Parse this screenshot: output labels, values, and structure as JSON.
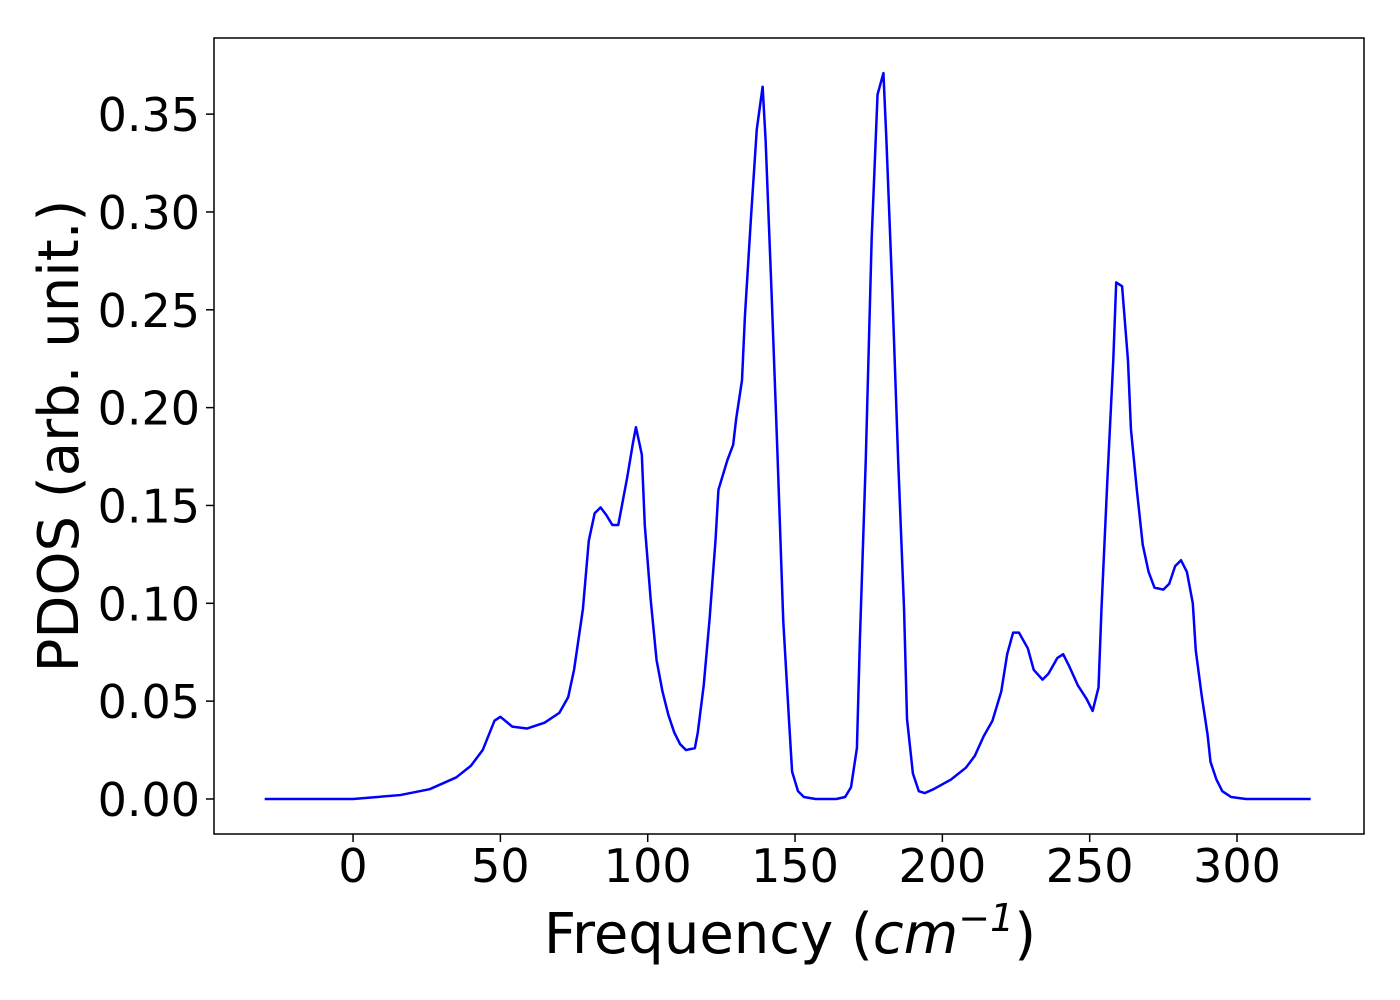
{
  "chart_data": {
    "type": "line",
    "xlabel": [
      "Frequency (",
      "cm",
      "−1",
      ")"
    ],
    "ylabel": "PDOS (arb. unit.)",
    "xlim": [
      -47.2,
      343.1
    ],
    "ylim": [
      -0.0179,
      0.3889
    ],
    "xticks": [
      0,
      50,
      100,
      150,
      200,
      250,
      300
    ],
    "yticks": [
      {
        "value": 0,
        "label": "0.00"
      },
      {
        "value": 0.05,
        "label": "0.05"
      },
      {
        "value": 0.1,
        "label": "0.10"
      },
      {
        "value": 0.15,
        "label": "0.15"
      },
      {
        "value": 0.2,
        "label": "0.20"
      },
      {
        "value": 0.25,
        "label": "0.25"
      },
      {
        "value": 0.3,
        "label": "0.30"
      },
      {
        "value": 0.35,
        "label": "0.35"
      }
    ],
    "grid": false,
    "x": [
      -30,
      0,
      16,
      26,
      35,
      40,
      44,
      48,
      50,
      54,
      59,
      65,
      70,
      73,
      75,
      78,
      80,
      82,
      84,
      86,
      88,
      90,
      91,
      93,
      95,
      96,
      98,
      99,
      101,
      103,
      105,
      107,
      109,
      111,
      113,
      116,
      117,
      119,
      121,
      123,
      124,
      127,
      129,
      130,
      132,
      133,
      135,
      137,
      139,
      140,
      142,
      144,
      146,
      148,
      149,
      151,
      153,
      157,
      164,
      167,
      169,
      171,
      172,
      174,
      176,
      178,
      180,
      181,
      183,
      185,
      187,
      188,
      190,
      192,
      194,
      197,
      203,
      208,
      211,
      214,
      217,
      220,
      222,
      224,
      226,
      229,
      231,
      234,
      236,
      239,
      241,
      243,
      246,
      249,
      251,
      253,
      254,
      256,
      258,
      259,
      261,
      263,
      264,
      266,
      268,
      270,
      272,
      275,
      277,
      279,
      281,
      283,
      285,
      286,
      288,
      290,
      291,
      293,
      295,
      298,
      303,
      325
    ],
    "series": [
      {
        "name": "PDOS",
        "color": "#0000ff",
        "values": [
          0,
          0,
          0.002,
          0.005,
          0.011,
          0.017,
          0.025,
          0.04,
          0.042,
          0.037,
          0.036,
          0.039,
          0.044,
          0.052,
          0.066,
          0.097,
          0.132,
          0.146,
          0.149,
          0.145,
          0.14,
          0.14,
          0.148,
          0.164,
          0.182,
          0.19,
          0.176,
          0.14,
          0.102,
          0.071,
          0.055,
          0.043,
          0.034,
          0.028,
          0.025,
          0.026,
          0.034,
          0.058,
          0.092,
          0.132,
          0.158,
          0.173,
          0.181,
          0.194,
          0.214,
          0.247,
          0.296,
          0.342,
          0.364,
          0.337,
          0.26,
          0.178,
          0.091,
          0.039,
          0.014,
          0.004,
          0.001,
          0,
          0,
          0.001,
          0.006,
          0.026,
          0.081,
          0.173,
          0.286,
          0.36,
          0.371,
          0.337,
          0.26,
          0.173,
          0.097,
          0.041,
          0.013,
          0.004,
          0.003,
          0.005,
          0.01,
          0.016,
          0.022,
          0.032,
          0.04,
          0.055,
          0.074,
          0.085,
          0.085,
          0.077,
          0.066,
          0.061,
          0.064,
          0.072,
          0.074,
          0.068,
          0.058,
          0.051,
          0.045,
          0.057,
          0.097,
          0.163,
          0.224,
          0.264,
          0.262,
          0.224,
          0.189,
          0.158,
          0.13,
          0.116,
          0.108,
          0.107,
          0.11,
          0.119,
          0.122,
          0.116,
          0.1,
          0.076,
          0.053,
          0.033,
          0.019,
          0.01,
          0.004,
          0.001,
          0,
          0
        ]
      }
    ]
  }
}
